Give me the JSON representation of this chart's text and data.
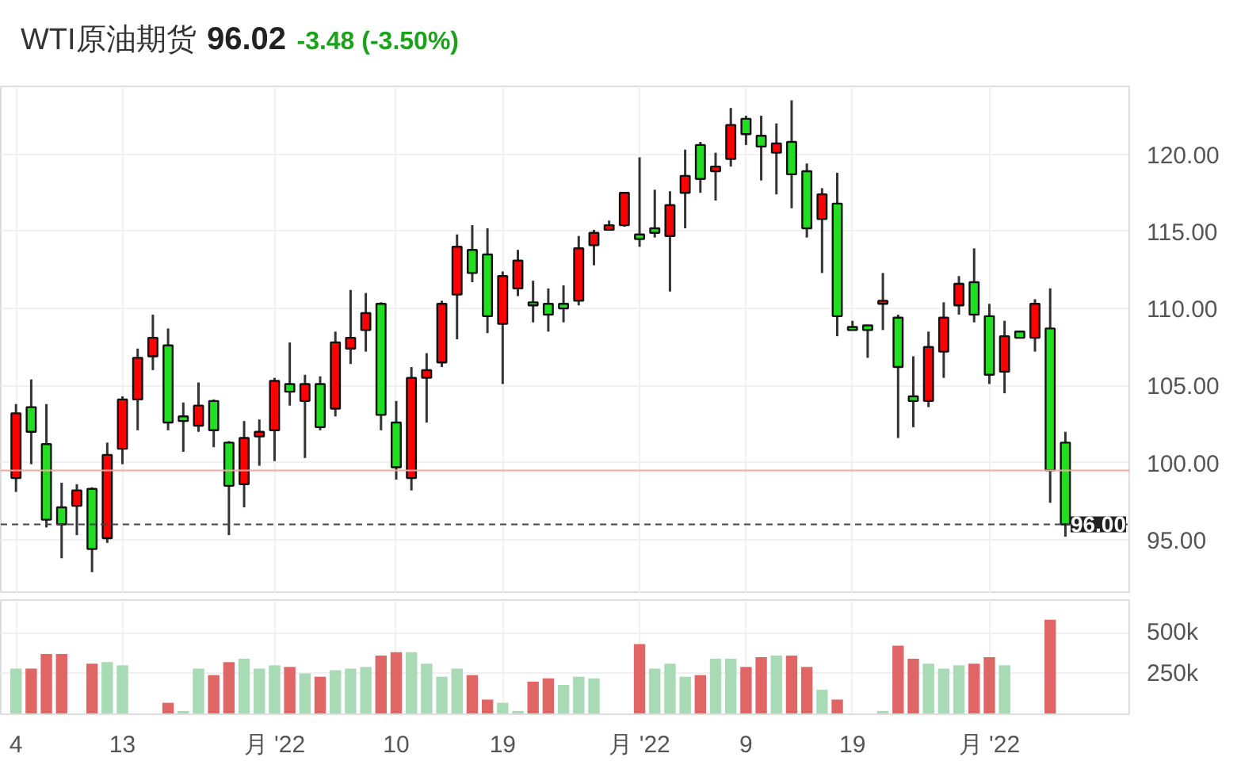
{
  "chart_data": [
    {
      "type": "candlestick",
      "title": "WTI原油期货",
      "annotations": [
        "96.02",
        "-3.48 (-3.50%)"
      ],
      "categories": [
        null,
        null,
        null,
        null,
        null,
        null,
        null,
        null,
        null,
        null,
        null,
        null,
        null,
        null,
        null,
        null,
        null,
        null,
        null,
        null,
        null,
        null,
        null,
        null,
        null,
        null,
        null,
        null,
        null,
        null,
        null,
        null,
        null,
        null,
        null,
        null,
        null,
        null,
        null,
        null,
        null,
        null,
        null,
        null,
        null,
        null,
        null,
        null,
        null,
        null,
        null,
        null,
        null,
        null,
        null,
        null,
        null,
        null,
        null,
        null,
        null,
        null,
        null,
        null,
        null,
        null,
        null,
        null,
        null,
        null
      ],
      "ohlc": [
        [
          99.0,
          103.8,
          98.1,
          103.2
        ],
        [
          103.6,
          105.4,
          99.9,
          102.0
        ],
        [
          101.2,
          103.8,
          95.8,
          96.3
        ],
        [
          97.1,
          98.7,
          93.8,
          96.0
        ],
        [
          97.2,
          98.6,
          95.3,
          98.2
        ],
        [
          98.3,
          98.4,
          92.9,
          94.4
        ],
        [
          95.1,
          101.3,
          94.8,
          100.5
        ],
        [
          100.9,
          104.3,
          99.9,
          104.1
        ],
        [
          104.1,
          107.4,
          102.1,
          106.8
        ],
        [
          106.9,
          109.6,
          106.0,
          108.1
        ],
        [
          107.6,
          108.7,
          102.1,
          102.6
        ],
        [
          103.0,
          103.9,
          100.7,
          102.7
        ],
        [
          102.4,
          105.2,
          102.0,
          103.7
        ],
        [
          104.0,
          104.1,
          101.0,
          102.1
        ],
        [
          101.3,
          101.4,
          95.3,
          98.5
        ],
        [
          98.6,
          102.7,
          97.1,
          101.6
        ],
        [
          101.7,
          102.8,
          99.8,
          102.0
        ],
        [
          102.1,
          105.5,
          100.1,
          105.3
        ],
        [
          105.1,
          107.8,
          103.7,
          104.6
        ],
        [
          104.0,
          105.7,
          100.3,
          105.1
        ],
        [
          105.1,
          105.6,
          102.1,
          102.3
        ],
        [
          103.5,
          108.5,
          103.0,
          107.8
        ],
        [
          107.4,
          111.2,
          106.4,
          108.1
        ],
        [
          108.6,
          111.0,
          107.2,
          109.7
        ],
        [
          110.3,
          110.4,
          102.1,
          103.1
        ],
        [
          102.6,
          104.0,
          98.9,
          99.7
        ],
        [
          99.0,
          106.2,
          98.2,
          105.5
        ],
        [
          105.5,
          107.1,
          102.6,
          106.0
        ],
        [
          106.5,
          110.5,
          106.2,
          110.3
        ],
        [
          110.9,
          114.8,
          108.0,
          114.0
        ],
        [
          113.8,
          115.4,
          111.7,
          112.3
        ],
        [
          113.5,
          115.2,
          108.4,
          109.5
        ],
        [
          109.0,
          112.4,
          105.1,
          112.1
        ],
        [
          111.3,
          113.8,
          110.8,
          113.1
        ],
        [
          110.4,
          111.8,
          109.1,
          110.2
        ],
        [
          110.3,
          111.3,
          108.5,
          109.6
        ],
        [
          110.3,
          111.5,
          109.1,
          110.0
        ],
        [
          110.5,
          114.7,
          110.2,
          113.9
        ],
        [
          114.1,
          115.1,
          112.8,
          114.9
        ],
        [
          115.1,
          115.7,
          115.1,
          115.4
        ],
        [
          115.4,
          117.5,
          115.3,
          117.5
        ],
        [
          114.8,
          119.8,
          114.0,
          114.5
        ],
        [
          115.2,
          117.7,
          114.6,
          114.9
        ],
        [
          114.7,
          117.6,
          111.1,
          116.7
        ],
        [
          117.5,
          120.3,
          115.2,
          118.6
        ],
        [
          120.6,
          120.8,
          117.5,
          118.4
        ],
        [
          118.9,
          120.1,
          117.0,
          119.2
        ],
        [
          119.7,
          123.0,
          119.2,
          121.9
        ],
        [
          122.3,
          122.5,
          120.6,
          121.3
        ],
        [
          121.2,
          122.5,
          118.3,
          120.5
        ],
        [
          120.1,
          122.0,
          117.4,
          120.7
        ],
        [
          120.8,
          123.5,
          116.5,
          118.7
        ],
        [
          118.9,
          119.4,
          114.6,
          115.2
        ],
        [
          115.8,
          117.8,
          112.3,
          117.4
        ],
        [
          116.8,
          118.8,
          108.2,
          109.5
        ],
        [
          108.8,
          109.2,
          108.6,
          108.6
        ],
        [
          108.9,
          108.9,
          106.8,
          108.6
        ],
        [
          110.3,
          112.3,
          108.6,
          110.5
        ],
        [
          109.4,
          109.6,
          101.6,
          106.2
        ],
        [
          104.3,
          106.9,
          102.3,
          104.0
        ],
        [
          104.0,
          108.5,
          103.6,
          107.5
        ],
        [
          107.2,
          110.4,
          105.5,
          109.4
        ],
        [
          110.2,
          112.1,
          109.6,
          111.6
        ],
        [
          111.7,
          113.9,
          109.1,
          109.6
        ],
        [
          109.5,
          110.3,
          105.1,
          105.7
        ],
        [
          105.9,
          109.2,
          104.5,
          108.2
        ],
        [
          108.5,
          108.5,
          108.1,
          108.1
        ],
        [
          108.1,
          110.6,
          107.2,
          110.3
        ],
        [
          108.7,
          111.3,
          97.4,
          99.5
        ],
        [
          101.3,
          102.0,
          95.2,
          96.0
        ]
      ],
      "colors": [
        "#ff0000",
        "#22dd22",
        "#22dd22",
        "#22dd22",
        "#ff0000",
        "#22dd22",
        "#ff0000",
        "#ff0000",
        "#ff0000",
        "#ff0000",
        "#22dd22",
        "#22dd22",
        "#ff0000",
        "#22dd22",
        "#22dd22",
        "#ff0000",
        "#ff0000",
        "#ff0000",
        "#22dd22",
        "#ff0000",
        "#22dd22",
        "#ff0000",
        "#ff0000",
        "#ff0000",
        "#22dd22",
        "#22dd22",
        "#ff0000",
        "#ff0000",
        "#ff0000",
        "#ff0000",
        "#22dd22",
        "#22dd22",
        "#ff0000",
        "#ff0000",
        "#22dd22",
        "#22dd22",
        "#22dd22",
        "#ff0000",
        "#ff0000",
        "#ff0000",
        "#ff0000",
        "#22dd22",
        "#22dd22",
        "#ff0000",
        "#ff0000",
        "#22dd22",
        "#ff0000",
        "#ff0000",
        "#22dd22",
        "#22dd22",
        "#ff0000",
        "#22dd22",
        "#22dd22",
        "#ff0000",
        "#22dd22",
        "#22dd22",
        "#22dd22",
        "#ff0000",
        "#22dd22",
        "#22dd22",
        "#ff0000",
        "#ff0000",
        "#ff0000",
        "#22dd22",
        "#22dd22",
        "#ff0000",
        "#22dd22",
        "#ff0000",
        "#22dd22",
        "#22dd22"
      ],
      "ylim": [
        91.5,
        124.4
      ],
      "yticks": [
        {
          "value": 95,
          "label": "95.00"
        },
        {
          "value": 100,
          "label": "100.00"
        },
        {
          "value": 105,
          "label": "105.00"
        },
        {
          "value": 110,
          "label": "110.00"
        },
        {
          "value": 115,
          "label": "115.00"
        },
        {
          "value": 120,
          "label": "120.00"
        }
      ],
      "ref_lines": [
        {
          "axis": "y",
          "value": 99.5,
          "color": "#f4a6a6",
          "line_style": "solid"
        },
        {
          "axis": "y",
          "value": 96.0,
          "label": "96.00",
          "color": "#444444",
          "line_style": "dashed"
        }
      ],
      "grid": true,
      "tick_labels": "y"
    },
    {
      "type": "bar",
      "categories": [
        "4",
        null,
        null,
        null,
        null,
        null,
        null,
        "13",
        null,
        null,
        null,
        null,
        null,
        null,
        null,
        null,
        null,
        "月 '22",
        null,
        null,
        null,
        null,
        null,
        null,
        null,
        "10",
        null,
        null,
        null,
        null,
        null,
        null,
        "19",
        null,
        null,
        null,
        null,
        null,
        null,
        null,
        null,
        "月 '22",
        null,
        null,
        null,
        null,
        null,
        null,
        "9",
        null,
        null,
        null,
        null,
        null,
        null,
        "19",
        null,
        null,
        null,
        null,
        null,
        null,
        null,
        null,
        "月 '22",
        null,
        null,
        null,
        null,
        null
      ],
      "values": [
        280000,
        280000,
        370000,
        370000,
        null,
        310000,
        320000,
        300000,
        null,
        null,
        70000,
        20000,
        280000,
        240000,
        320000,
        340000,
        280000,
        300000,
        290000,
        250000,
        230000,
        270000,
        280000,
        290000,
        360000,
        380000,
        380000,
        310000,
        230000,
        280000,
        240000,
        90000,
        70000,
        20000,
        200000,
        220000,
        180000,
        230000,
        220000,
        null,
        null,
        430000,
        280000,
        310000,
        230000,
        240000,
        340000,
        340000,
        290000,
        350000,
        360000,
        360000,
        290000,
        150000,
        90000,
        null,
        null,
        20000,
        420000,
        340000,
        310000,
        280000,
        300000,
        310000,
        350000,
        300000,
        null,
        null,
        580000,
        null
      ],
      "colors": [
        "#a8dab5",
        "#e06666",
        "#e06666",
        "#e06666",
        null,
        "#e06666",
        "#a8dab5",
        "#a8dab5",
        null,
        null,
        "#e06666",
        "#a8dab5",
        "#a8dab5",
        "#e06666",
        "#e06666",
        "#a8dab5",
        "#a8dab5",
        "#a8dab5",
        "#e06666",
        "#a8dab5",
        "#e06666",
        "#a8dab5",
        "#a8dab5",
        "#a8dab5",
        "#e06666",
        "#e06666",
        "#a8dab5",
        "#a8dab5",
        "#a8dab5",
        "#a8dab5",
        "#e06666",
        "#e06666",
        "#a8dab5",
        "#a8dab5",
        "#e06666",
        "#e06666",
        "#a8dab5",
        "#a8dab5",
        "#a8dab5",
        null,
        null,
        "#e06666",
        "#a8dab5",
        "#a8dab5",
        "#a8dab5",
        "#e06666",
        "#a8dab5",
        "#a8dab5",
        "#e06666",
        "#e06666",
        "#a8dab5",
        "#e06666",
        "#e06666",
        "#a8dab5",
        "#e06666",
        null,
        null,
        "#a8dab5",
        "#e06666",
        "#e06666",
        "#a8dab5",
        "#a8dab5",
        "#a8dab5",
        "#e06666",
        "#e06666",
        "#a8dab5",
        null,
        null,
        "#e06666",
        null
      ],
      "ylim": [
        0,
        700000
      ],
      "yticks": [
        {
          "value": 250000,
          "label": "250k"
        },
        {
          "value": 500000,
          "label": "500k"
        }
      ],
      "grid": true
    }
  ]
}
